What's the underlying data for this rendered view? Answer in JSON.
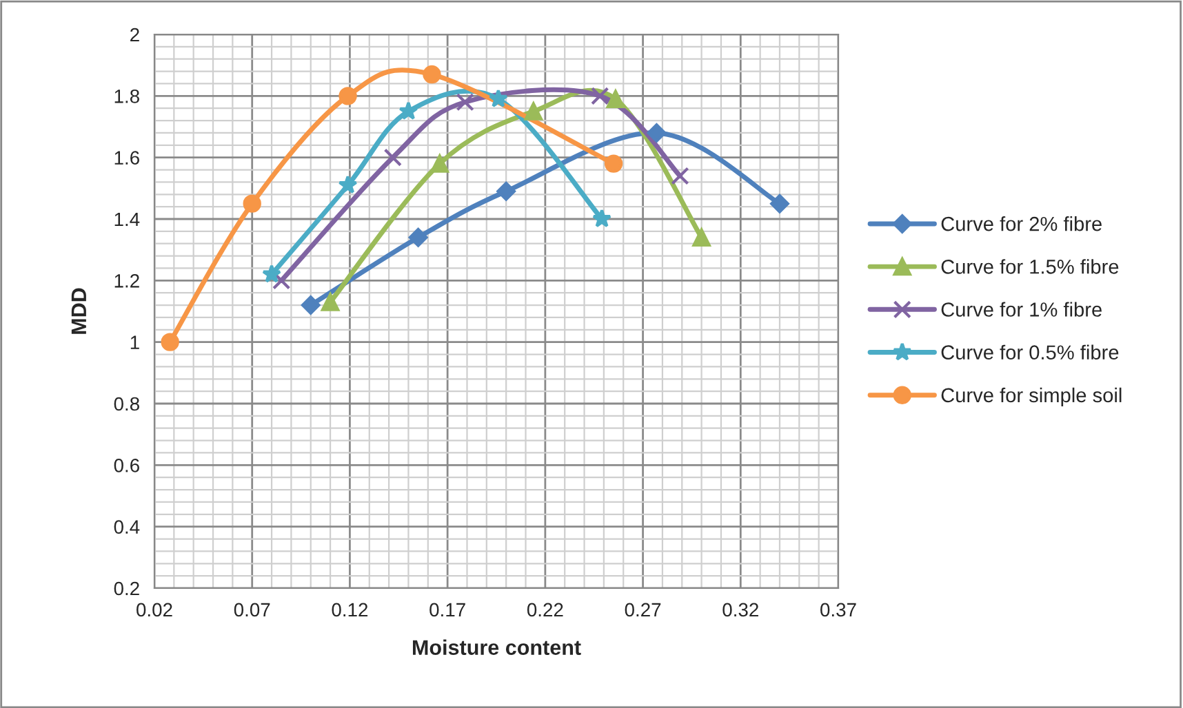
{
  "chart_data": {
    "type": "line",
    "xlabel": "Moisture content",
    "ylabel": "MDD",
    "xlim": [
      0.02,
      0.37
    ],
    "xticks": [
      {
        "value": 0.02,
        "label": "0.02"
      },
      {
        "value": 0.07,
        "label": "0.07"
      },
      {
        "value": 0.12,
        "label": "0.12"
      },
      {
        "value": 0.17,
        "label": "0.17"
      },
      {
        "value": 0.22,
        "label": "0.22"
      },
      {
        "value": 0.27,
        "label": "0.27"
      },
      {
        "value": 0.32,
        "label": "0.32"
      },
      {
        "value": 0.37,
        "label": "0.37"
      }
    ],
    "ylim": [
      0.2,
      2
    ],
    "yticks": [
      {
        "value": 0.2,
        "label": "0.2"
      },
      {
        "value": 0.4,
        "label": "0.4"
      },
      {
        "value": 0.6,
        "label": "0.6"
      },
      {
        "value": 0.8,
        "label": "0.8"
      },
      1,
      {
        "value": 1.2,
        "label": "1.2"
      },
      {
        "value": 1.4,
        "label": "1.4"
      },
      {
        "value": 1.6,
        "label": "1.6"
      },
      {
        "value": 1.8,
        "label": "1.8"
      },
      2
    ],
    "grid": true,
    "legend": "right",
    "series": [
      {
        "name": "Curve for 2% fibre",
        "color": "#4f81bd",
        "marker": "diamond",
        "x": [
          0.1,
          0.155,
          0.2,
          0.277,
          0.34
        ],
        "values": [
          1.12,
          1.34,
          1.49,
          1.68,
          1.45
        ]
      },
      {
        "name": "Curve for 1.5% fibre",
        "color": "#9bbb59",
        "marker": "triangle",
        "x": [
          0.11,
          0.166,
          0.214,
          0.256,
          0.3
        ],
        "values": [
          1.13,
          1.58,
          1.75,
          1.79,
          1.34
        ]
      },
      {
        "name": "Curve for 1% fibre",
        "color": "#8064a2",
        "marker": "cross",
        "x": [
          0.085,
          0.142,
          0.179,
          0.248,
          0.289
        ],
        "values": [
          1.2,
          1.6,
          1.78,
          1.8,
          1.54
        ]
      },
      {
        "name": "Curve for 0.5% fibre",
        "color": "#4bacc6",
        "marker": "star",
        "x": [
          0.08,
          0.119,
          0.15,
          0.196,
          0.249
        ],
        "values": [
          1.22,
          1.51,
          1.75,
          1.79,
          1.4
        ]
      },
      {
        "name": "Curve for simple soil",
        "color": "#f79646",
        "marker": "circle",
        "x": [
          0.028,
          0.07,
          0.119,
          0.162,
          0.255
        ],
        "values": [
          1.0,
          1.45,
          1.8,
          1.87,
          1.58
        ]
      }
    ]
  }
}
